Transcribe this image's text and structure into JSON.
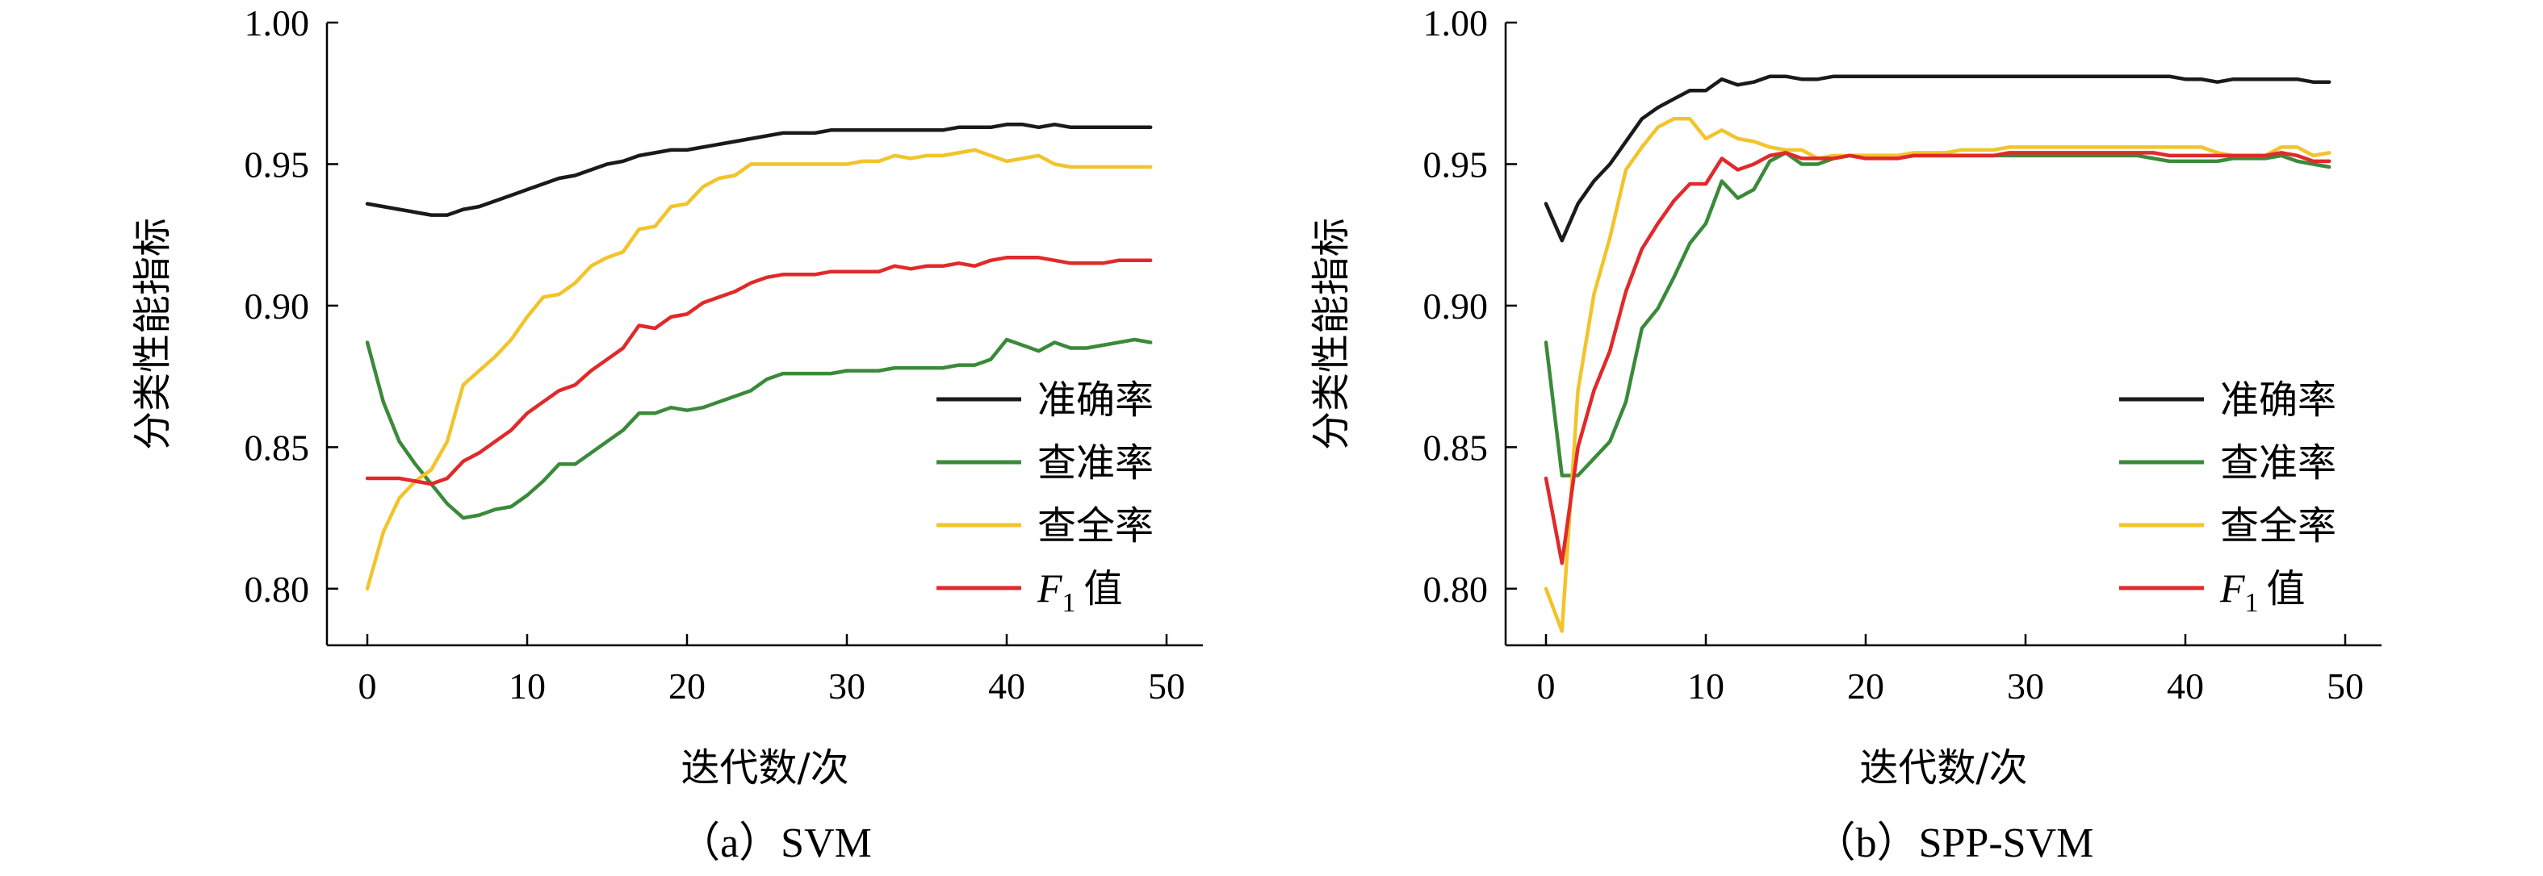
{
  "colors": {
    "accuracy": "#1a1a1a",
    "precision": "#3a8a3a",
    "recall": "#f2c42c",
    "f1": "#e02a2a"
  },
  "chart_data": [
    {
      "type": "line",
      "caption": "（a）SVM",
      "xlabel": "迭代数/次",
      "ylabel": "分类性能指标",
      "xlim": [
        0,
        50
      ],
      "ylim": [
        0.78,
        1.0
      ],
      "xticks": [
        0,
        10,
        20,
        30,
        40,
        50
      ],
      "yticks": [
        0.8,
        0.85,
        0.9,
        0.95,
        1.0
      ],
      "xtick_labels": [
        "0",
        "10",
        "20",
        "30",
        "40",
        "50"
      ],
      "ytick_labels": [
        "0.80",
        "0.85",
        "0.90",
        "0.95",
        "1.00"
      ],
      "legend_placement": "center-right",
      "x": [
        0,
        1,
        2,
        3,
        4,
        5,
        6,
        7,
        8,
        9,
        10,
        11,
        12,
        13,
        14,
        15,
        16,
        17,
        18,
        19,
        20,
        21,
        22,
        23,
        24,
        25,
        26,
        27,
        28,
        29,
        30,
        31,
        32,
        33,
        34,
        35,
        36,
        37,
        38,
        39,
        40,
        41,
        42,
        43,
        44,
        45,
        46,
        47,
        48,
        49
      ],
      "series": [
        {
          "key": "accuracy",
          "name": "准确率",
          "values": [
            0.936,
            0.935,
            0.934,
            0.933,
            0.932,
            0.932,
            0.934,
            0.935,
            0.937,
            0.939,
            0.941,
            0.943,
            0.945,
            0.946,
            0.948,
            0.95,
            0.951,
            0.953,
            0.954,
            0.955,
            0.955,
            0.956,
            0.957,
            0.958,
            0.959,
            0.96,
            0.961,
            0.961,
            0.961,
            0.962,
            0.962,
            0.962,
            0.962,
            0.962,
            0.962,
            0.962,
            0.962,
            0.963,
            0.963,
            0.963,
            0.964,
            0.964,
            0.963,
            0.964,
            0.963,
            0.963,
            0.963,
            0.963,
            0.963,
            0.963
          ]
        },
        {
          "key": "precision",
          "name": "查准率",
          "values": [
            0.887,
            0.866,
            0.852,
            0.844,
            0.837,
            0.83,
            0.825,
            0.826,
            0.828,
            0.829,
            0.833,
            0.838,
            0.844,
            0.844,
            0.848,
            0.852,
            0.856,
            0.862,
            0.862,
            0.864,
            0.863,
            0.864,
            0.866,
            0.868,
            0.87,
            0.874,
            0.876,
            0.876,
            0.876,
            0.876,
            0.877,
            0.877,
            0.877,
            0.878,
            0.878,
            0.878,
            0.878,
            0.879,
            0.879,
            0.881,
            0.888,
            0.886,
            0.884,
            0.887,
            0.885,
            0.885,
            0.886,
            0.887,
            0.888,
            0.887
          ]
        },
        {
          "key": "recall",
          "name": "查全率",
          "values": [
            0.8,
            0.82,
            0.832,
            0.838,
            0.842,
            0.852,
            0.872,
            0.877,
            0.882,
            0.888,
            0.896,
            0.903,
            0.904,
            0.908,
            0.914,
            0.917,
            0.919,
            0.927,
            0.928,
            0.935,
            0.936,
            0.942,
            0.945,
            0.946,
            0.95,
            0.95,
            0.95,
            0.95,
            0.95,
            0.95,
            0.95,
            0.951,
            0.951,
            0.953,
            0.952,
            0.953,
            0.953,
            0.954,
            0.955,
            0.953,
            0.951,
            0.952,
            0.953,
            0.95,
            0.949,
            0.949,
            0.949,
            0.949,
            0.949,
            0.949
          ]
        },
        {
          "key": "f1",
          "name": "值",
          "values": [
            0.839,
            0.839,
            0.839,
            0.838,
            0.837,
            0.839,
            0.845,
            0.848,
            0.852,
            0.856,
            0.862,
            0.866,
            0.87,
            0.872,
            0.877,
            0.881,
            0.885,
            0.893,
            0.892,
            0.896,
            0.897,
            0.901,
            0.903,
            0.905,
            0.908,
            0.91,
            0.911,
            0.911,
            0.911,
            0.912,
            0.912,
            0.912,
            0.912,
            0.914,
            0.913,
            0.914,
            0.914,
            0.915,
            0.914,
            0.916,
            0.917,
            0.917,
            0.917,
            0.916,
            0.915,
            0.915,
            0.915,
            0.916,
            0.916,
            0.916
          ]
        }
      ]
    },
    {
      "type": "line",
      "caption": "（b）SPP-SVM",
      "xlabel": "迭代数/次",
      "ylabel": "分类性能指标",
      "xlim": [
        0,
        50
      ],
      "ylim": [
        0.78,
        1.0
      ],
      "xticks": [
        0,
        10,
        20,
        30,
        40,
        50
      ],
      "yticks": [
        0.8,
        0.85,
        0.9,
        0.95,
        1.0
      ],
      "xtick_labels": [
        "0",
        "10",
        "20",
        "30",
        "40",
        "50"
      ],
      "ytick_labels": [
        "0.80",
        "0.85",
        "0.90",
        "0.95",
        "1.00"
      ],
      "legend_placement": "center-right",
      "x": [
        0,
        1,
        2,
        3,
        4,
        5,
        6,
        7,
        8,
        9,
        10,
        11,
        12,
        13,
        14,
        15,
        16,
        17,
        18,
        19,
        20,
        21,
        22,
        23,
        24,
        25,
        26,
        27,
        28,
        29,
        30,
        31,
        32,
        33,
        34,
        35,
        36,
        37,
        38,
        39,
        40,
        41,
        42,
        43,
        44,
        45,
        46,
        47,
        48,
        49
      ],
      "series": [
        {
          "key": "accuracy",
          "name": "准确率",
          "values": [
            0.936,
            0.923,
            0.936,
            0.944,
            0.95,
            0.958,
            0.966,
            0.97,
            0.973,
            0.976,
            0.976,
            0.98,
            0.978,
            0.979,
            0.981,
            0.981,
            0.98,
            0.98,
            0.981,
            0.981,
            0.981,
            0.981,
            0.981,
            0.981,
            0.981,
            0.981,
            0.981,
            0.981,
            0.981,
            0.981,
            0.981,
            0.981,
            0.981,
            0.981,
            0.981,
            0.981,
            0.981,
            0.981,
            0.981,
            0.981,
            0.98,
            0.98,
            0.979,
            0.98,
            0.98,
            0.98,
            0.98,
            0.98,
            0.979,
            0.979
          ]
        },
        {
          "key": "precision",
          "name": "查准率",
          "values": [
            0.887,
            0.84,
            0.84,
            0.846,
            0.852,
            0.866,
            0.892,
            0.899,
            0.91,
            0.922,
            0.929,
            0.944,
            0.938,
            0.941,
            0.951,
            0.954,
            0.95,
            0.95,
            0.952,
            0.953,
            0.953,
            0.953,
            0.953,
            0.953,
            0.953,
            0.953,
            0.953,
            0.953,
            0.953,
            0.953,
            0.953,
            0.953,
            0.953,
            0.953,
            0.953,
            0.953,
            0.953,
            0.953,
            0.952,
            0.951,
            0.951,
            0.951,
            0.951,
            0.952,
            0.952,
            0.952,
            0.953,
            0.951,
            0.95,
            0.949
          ]
        },
        {
          "key": "recall",
          "name": "查全率",
          "values": [
            0.8,
            0.785,
            0.87,
            0.904,
            0.924,
            0.948,
            0.956,
            0.963,
            0.966,
            0.966,
            0.959,
            0.962,
            0.959,
            0.958,
            0.956,
            0.955,
            0.955,
            0.952,
            0.953,
            0.953,
            0.953,
            0.953,
            0.953,
            0.954,
            0.954,
            0.954,
            0.955,
            0.955,
            0.955,
            0.956,
            0.956,
            0.956,
            0.956,
            0.956,
            0.956,
            0.956,
            0.956,
            0.956,
            0.956,
            0.956,
            0.956,
            0.956,
            0.954,
            0.953,
            0.953,
            0.953,
            0.956,
            0.956,
            0.953,
            0.954
          ]
        },
        {
          "key": "f1",
          "name": "值",
          "values": [
            0.839,
            0.809,
            0.85,
            0.87,
            0.884,
            0.905,
            0.92,
            0.929,
            0.937,
            0.943,
            0.943,
            0.952,
            0.948,
            0.95,
            0.953,
            0.954,
            0.952,
            0.952,
            0.952,
            0.953,
            0.952,
            0.952,
            0.952,
            0.953,
            0.953,
            0.953,
            0.953,
            0.953,
            0.953,
            0.954,
            0.954,
            0.954,
            0.954,
            0.954,
            0.954,
            0.954,
            0.954,
            0.954,
            0.954,
            0.953,
            0.953,
            0.953,
            0.953,
            0.953,
            0.953,
            0.953,
            0.954,
            0.953,
            0.951,
            0.951
          ]
        }
      ]
    }
  ],
  "legend_f1_prefix": "F",
  "legend_f1_sub": "1"
}
